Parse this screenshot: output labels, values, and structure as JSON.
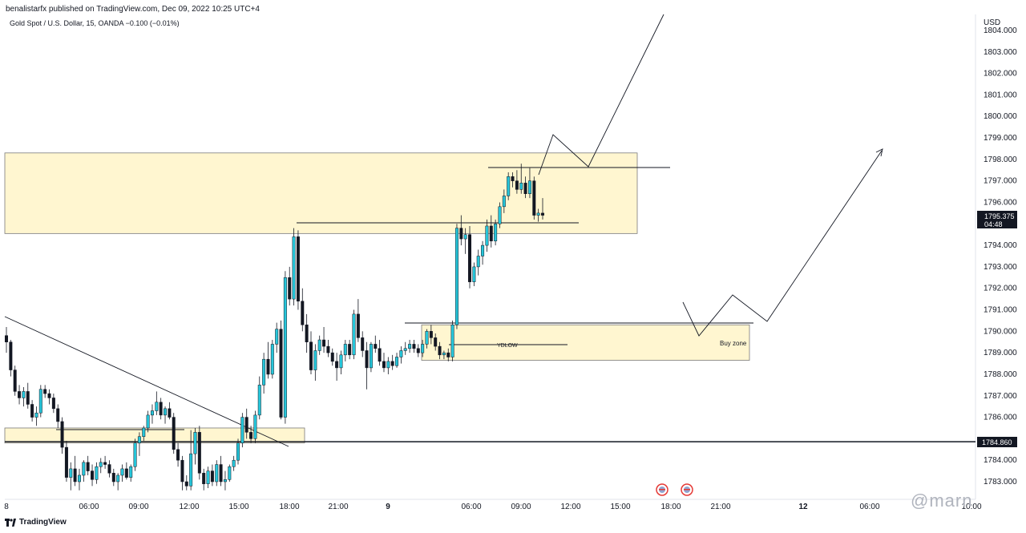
{
  "header": {
    "published_caption": "benalistarfx published on TradingView.com, Dec 09, 2022 10:25 UTC+4",
    "symbol_legend": "Gold Spot / U.S. Dollar, 15, OANDA  −0.100 (−0.01%)"
  },
  "footer": {
    "brand": "TradingView",
    "watermark": "@marn"
  },
  "colors": {
    "up_candle": "#26c6da",
    "down_candle": "#131722",
    "zone_fill": "#fff6d0",
    "zone_stroke": "#7a7a7a",
    "price_label_bg": "#131722"
  },
  "chart_data": {
    "type": "candlestick",
    "symbol": "Gold Spot / U.S. Dollar",
    "interval": "15",
    "source": "OANDA",
    "currency": "USD",
    "ylim": [
      1782.5,
      1804.5
    ],
    "y_ticks": [
      1783,
      1784,
      1786,
      1787,
      1788,
      1789,
      1790,
      1791,
      1792,
      1793,
      1794,
      1796,
      1797,
      1798,
      1799,
      1800,
      1801,
      1802,
      1803,
      1804
    ],
    "y_tick_labels": [
      "1783.000",
      "1784.000",
      "1786.000",
      "1787.000",
      "1788.000",
      "1789.000",
      "1790.000",
      "1791.000",
      "1792.000",
      "1793.000",
      "1794.000",
      "1796.000",
      "1797.000",
      "1798.000",
      "1799.000",
      "1800.000",
      "1801.000",
      "1802.000",
      "1803.000",
      "1804.000"
    ],
    "x_tick_labels": [
      "8",
      "06:00",
      "09:00",
      "12:00",
      "15:00",
      "18:00",
      "21:00",
      "9",
      "06:00",
      "09:00",
      "12:00",
      "15:00",
      "18:00",
      "21:00",
      "12",
      "06:00",
      "10:00"
    ],
    "last_price": "1795.375",
    "countdown": "04:48",
    "horizontal_line_price": "1784.860",
    "horizontal_line_value": 1784.86,
    "zones": [
      {
        "name": "upper-supply",
        "top": 1798.3,
        "bottom": 1794.55
      },
      {
        "name": "lower-demand",
        "top": 1785.5,
        "bottom": 1784.8
      },
      {
        "name": "buy-zone",
        "top": 1790.3,
        "bottom": 1788.65,
        "label": "Buy zone"
      }
    ],
    "annotations": {
      "ydlow_label": "YDLOW",
      "buy_zone_label": "Buy zone"
    },
    "candles": [
      [
        1789.8,
        1790.2,
        1789.0,
        1789.5
      ],
      [
        1789.5,
        1789.6,
        1787.9,
        1788.2
      ],
      [
        1788.2,
        1788.4,
        1787.0,
        1787.2
      ],
      [
        1787.2,
        1787.5,
        1786.6,
        1786.9
      ],
      [
        1786.9,
        1787.4,
        1786.5,
        1787.2
      ],
      [
        1787.2,
        1787.6,
        1786.4,
        1786.6
      ],
      [
        1786.6,
        1786.8,
        1785.8,
        1786.0
      ],
      [
        1786.0,
        1786.5,
        1785.6,
        1786.2
      ],
      [
        1786.2,
        1787.5,
        1786.0,
        1787.3
      ],
      [
        1787.3,
        1787.5,
        1786.9,
        1787.1
      ],
      [
        1787.1,
        1787.3,
        1786.6,
        1786.9
      ],
      [
        1786.9,
        1787.1,
        1786.2,
        1786.4
      ],
      [
        1786.4,
        1786.6,
        1785.5,
        1785.8
      ],
      [
        1785.8,
        1786.0,
        1784.3,
        1784.6
      ],
      [
        1784.6,
        1784.9,
        1783.0,
        1783.2
      ],
      [
        1783.2,
        1783.9,
        1782.6,
        1783.6
      ],
      [
        1783.6,
        1784.2,
        1782.8,
        1783.0
      ],
      [
        1783.0,
        1783.6,
        1782.6,
        1783.3
      ],
      [
        1783.3,
        1784.0,
        1783.0,
        1783.9
      ],
      [
        1783.9,
        1784.2,
        1783.3,
        1783.5
      ],
      [
        1783.5,
        1783.8,
        1782.8,
        1783.1
      ],
      [
        1783.1,
        1783.9,
        1782.9,
        1783.7
      ],
      [
        1783.7,
        1784.1,
        1783.4,
        1783.9
      ],
      [
        1783.9,
        1784.2,
        1783.6,
        1783.8
      ],
      [
        1783.8,
        1784.0,
        1783.2,
        1783.4
      ],
      [
        1783.4,
        1783.6,
        1782.8,
        1783.0
      ],
      [
        1783.0,
        1783.4,
        1782.6,
        1783.3
      ],
      [
        1783.3,
        1783.8,
        1783.0,
        1783.6
      ],
      [
        1783.6,
        1783.9,
        1783.1,
        1783.2
      ],
      [
        1783.2,
        1783.8,
        1783.0,
        1783.7
      ],
      [
        1783.7,
        1785.0,
        1783.5,
        1784.8
      ],
      [
        1784.8,
        1785.3,
        1784.2,
        1785.1
      ],
      [
        1785.1,
        1785.6,
        1784.9,
        1785.5
      ],
      [
        1785.5,
        1786.3,
        1785.3,
        1786.1
      ],
      [
        1786.1,
        1786.6,
        1785.7,
        1786.3
      ],
      [
        1786.3,
        1787.2,
        1786.1,
        1786.7
      ],
      [
        1786.7,
        1786.9,
        1785.9,
        1786.1
      ],
      [
        1786.1,
        1786.5,
        1785.7,
        1786.4
      ],
      [
        1786.4,
        1786.7,
        1785.9,
        1786.0
      ],
      [
        1786.0,
        1786.2,
        1784.3,
        1784.5
      ],
      [
        1784.5,
        1784.8,
        1783.7,
        1784.0
      ],
      [
        1784.0,
        1784.2,
        1782.6,
        1783.0
      ],
      [
        1783.0,
        1783.3,
        1782.6,
        1782.8
      ],
      [
        1782.8,
        1785.4,
        1782.6,
        1784.3
      ],
      [
        1784.3,
        1785.5,
        1783.8,
        1785.3
      ],
      [
        1785.3,
        1785.6,
        1783.1,
        1783.4
      ],
      [
        1783.4,
        1783.6,
        1782.6,
        1782.9
      ],
      [
        1782.9,
        1783.7,
        1782.7,
        1783.5
      ],
      [
        1783.5,
        1783.8,
        1782.8,
        1783.0
      ],
      [
        1783.0,
        1784.0,
        1782.8,
        1783.8
      ],
      [
        1783.8,
        1784.2,
        1782.8,
        1783.0
      ],
      [
        1783.0,
        1783.5,
        1782.6,
        1783.1
      ],
      [
        1783.1,
        1783.8,
        1783.0,
        1783.7
      ],
      [
        1783.7,
        1784.2,
        1783.5,
        1784.0
      ],
      [
        1784.0,
        1785.0,
        1783.8,
        1784.8
      ],
      [
        1784.8,
        1786.2,
        1784.6,
        1786.0
      ],
      [
        1786.0,
        1786.4,
        1785.0,
        1785.3
      ],
      [
        1785.3,
        1785.6,
        1784.8,
        1785.0
      ],
      [
        1785.0,
        1786.3,
        1784.8,
        1786.1
      ],
      [
        1786.1,
        1787.9,
        1785.9,
        1787.5
      ],
      [
        1787.5,
        1789.0,
        1787.1,
        1788.7
      ],
      [
        1788.7,
        1789.5,
        1787.8,
        1788.0
      ],
      [
        1788.0,
        1789.6,
        1787.8,
        1789.4
      ],
      [
        1789.4,
        1790.4,
        1789.0,
        1790.1
      ],
      [
        1790.1,
        1790.5,
        1785.9,
        1786.0
      ],
      [
        1786.0,
        1792.8,
        1785.7,
        1792.5
      ],
      [
        1792.5,
        1793.0,
        1791.2,
        1791.5
      ],
      [
        1791.5,
        1794.8,
        1791.2,
        1794.4
      ],
      [
        1794.4,
        1794.7,
        1791.0,
        1791.4
      ],
      [
        1791.4,
        1792.0,
        1790.0,
        1790.3
      ],
      [
        1790.3,
        1790.8,
        1789.0,
        1789.5
      ],
      [
        1789.5,
        1790.0,
        1788.0,
        1788.2
      ],
      [
        1788.2,
        1789.4,
        1787.7,
        1789.1
      ],
      [
        1789.1,
        1789.8,
        1788.9,
        1789.6
      ],
      [
        1789.6,
        1790.2,
        1789.0,
        1789.3
      ],
      [
        1789.3,
        1789.6,
        1788.8,
        1789.0
      ],
      [
        1789.0,
        1789.2,
        1788.4,
        1788.6
      ],
      [
        1788.6,
        1789.0,
        1787.7,
        1788.3
      ],
      [
        1788.3,
        1789.1,
        1788.0,
        1788.9
      ],
      [
        1788.9,
        1789.6,
        1788.6,
        1789.4
      ],
      [
        1789.4,
        1789.6,
        1788.7,
        1788.9
      ],
      [
        1788.9,
        1791.0,
        1788.7,
        1790.8
      ],
      [
        1790.8,
        1791.5,
        1789.5,
        1789.7
      ],
      [
        1789.7,
        1790.0,
        1788.8,
        1789.1
      ],
      [
        1789.1,
        1789.5,
        1787.3,
        1788.3
      ],
      [
        1788.3,
        1789.5,
        1788.1,
        1789.4
      ],
      [
        1789.4,
        1789.8,
        1789.0,
        1789.2
      ],
      [
        1789.2,
        1789.6,
        1788.4,
        1788.6
      ],
      [
        1788.6,
        1789.0,
        1788.1,
        1788.3
      ],
      [
        1788.3,
        1788.8,
        1788.0,
        1788.6
      ],
      [
        1788.6,
        1788.9,
        1788.2,
        1788.4
      ],
      [
        1788.4,
        1789.0,
        1788.3,
        1788.8
      ],
      [
        1788.8,
        1789.3,
        1788.5,
        1789.1
      ],
      [
        1789.1,
        1789.5,
        1788.9,
        1789.2
      ],
      [
        1789.2,
        1789.6,
        1789.0,
        1789.4
      ],
      [
        1789.4,
        1789.6,
        1789.0,
        1789.2
      ],
      [
        1789.2,
        1789.4,
        1788.8,
        1789.0
      ],
      [
        1789.0,
        1789.6,
        1788.8,
        1789.4
      ],
      [
        1789.4,
        1790.1,
        1789.2,
        1790.0
      ],
      [
        1790.0,
        1790.3,
        1789.4,
        1789.7
      ],
      [
        1789.7,
        1789.9,
        1789.1,
        1789.3
      ],
      [
        1789.3,
        1789.5,
        1788.7,
        1788.9
      ],
      [
        1788.9,
        1789.1,
        1788.7,
        1789.0
      ],
      [
        1789.0,
        1789.2,
        1788.6,
        1788.8
      ],
      [
        1788.8,
        1790.5,
        1788.6,
        1790.3
      ],
      [
        1790.3,
        1795.0,
        1790.1,
        1794.8
      ],
      [
        1794.8,
        1795.4,
        1794.0,
        1794.3
      ],
      [
        1794.3,
        1794.8,
        1793.6,
        1794.5
      ],
      [
        1794.5,
        1794.9,
        1792.0,
        1792.3
      ],
      [
        1792.3,
        1793.2,
        1792.1,
        1793.0
      ],
      [
        1793.0,
        1793.8,
        1792.6,
        1793.5
      ],
      [
        1793.5,
        1794.2,
        1793.1,
        1794.0
      ],
      [
        1794.0,
        1795.2,
        1793.7,
        1794.9
      ],
      [
        1794.9,
        1795.4,
        1793.9,
        1794.2
      ],
      [
        1794.2,
        1795.2,
        1794.0,
        1795.0
      ],
      [
        1795.0,
        1796.0,
        1794.8,
        1795.8
      ],
      [
        1795.8,
        1796.6,
        1795.5,
        1796.3
      ],
      [
        1796.3,
        1797.4,
        1796.1,
        1797.2
      ],
      [
        1797.2,
        1797.4,
        1796.7,
        1797.0
      ],
      [
        1797.0,
        1797.5,
        1796.4,
        1796.6
      ],
      [
        1796.6,
        1797.8,
        1796.4,
        1796.9
      ],
      [
        1796.9,
        1797.2,
        1796.2,
        1796.4
      ],
      [
        1796.4,
        1797.6,
        1796.2,
        1797.0
      ],
      [
        1797.0,
        1797.2,
        1795.2,
        1795.4
      ],
      [
        1795.4,
        1795.7,
        1795.1,
        1795.5
      ],
      [
        1795.5,
        1796.2,
        1795.2,
        1795.4
      ]
    ]
  }
}
